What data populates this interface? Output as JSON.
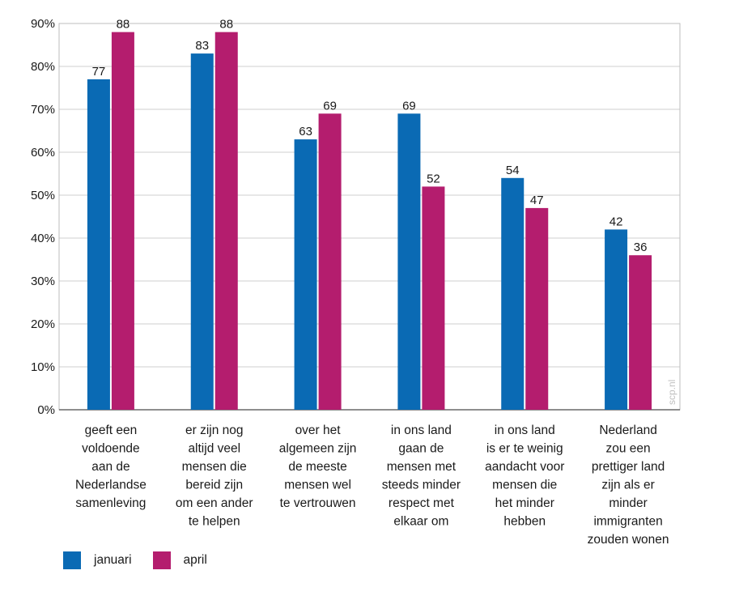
{
  "chart_data": {
    "type": "bar",
    "categories": [
      [
        "geeft een",
        "voldoende",
        "aan de",
        "Nederlandse",
        "samenleving"
      ],
      [
        "er zijn nog",
        "altijd veel",
        "mensen die",
        "bereid zijn",
        "om een ander",
        "te helpen"
      ],
      [
        "over het",
        "algemeen zijn",
        "de meeste",
        "mensen wel",
        "te vertrouwen"
      ],
      [
        "in ons land",
        "gaan de",
        "mensen met",
        "steeds minder",
        "respect met",
        "elkaar om"
      ],
      [
        "in ons land",
        "is er te weinig",
        "aandacht voor",
        "mensen die",
        "het minder",
        "hebben"
      ],
      [
        "Nederland",
        "zou een",
        "prettiger land",
        "zijn als er",
        "minder",
        "immigranten",
        "zouden wonen"
      ]
    ],
    "series": [
      {
        "name": "januari",
        "color": "#0a6ab4",
        "values": [
          77,
          83,
          63,
          69,
          54,
          42
        ]
      },
      {
        "name": "april",
        "color": "#b41d6e",
        "values": [
          88,
          88,
          69,
          52,
          47,
          36
        ]
      }
    ],
    "ylim": [
      0,
      90
    ],
    "ytick_values": [
      0,
      10,
      20,
      30,
      40,
      50,
      60,
      70,
      80,
      90
    ],
    "ytick_labels": [
      "0%",
      "10%",
      "20%",
      "30%",
      "40%",
      "50%",
      "60%",
      "70%",
      "80%",
      "90%"
    ],
    "grid": true,
    "legend_position": "bottom-left",
    "watermark": "scp.nl"
  }
}
